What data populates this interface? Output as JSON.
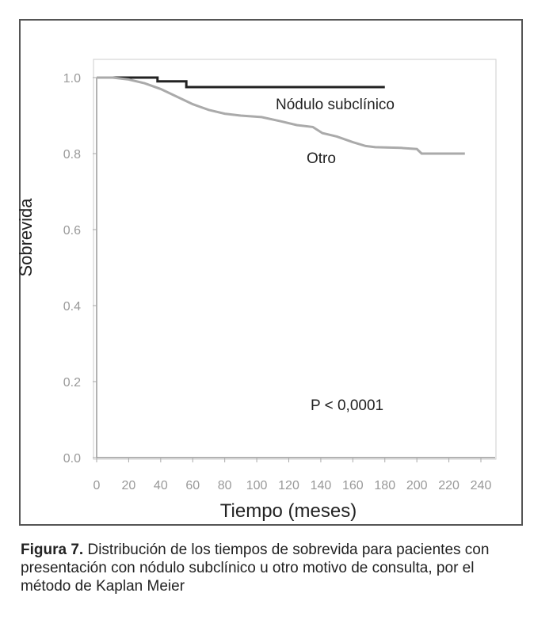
{
  "chart_data": {
    "type": "line",
    "title": "",
    "xlabel": "Tiempo (meses)",
    "ylabel": "Sobrevida",
    "xlim": [
      0,
      240
    ],
    "ylim": [
      0,
      1.0
    ],
    "xticks": [
      "0",
      "20",
      "40",
      "60",
      "80",
      "100",
      "120",
      "140",
      "160",
      "180",
      "200",
      "220",
      "240"
    ],
    "yticks": [
      "0.0",
      "0.2",
      "0.4",
      "0.6",
      "0.8",
      "1.0"
    ],
    "grid": false,
    "annotation": "P < 0,0001",
    "series": [
      {
        "name": "Nódulo subclínico",
        "color": "#222222",
        "step": true,
        "x": [
          0,
          38,
          56,
          180
        ],
        "y": [
          1.0,
          0.99,
          0.975,
          0.975
        ]
      },
      {
        "name": "Otro",
        "color": "#aaaaaa",
        "step": false,
        "x": [
          0,
          10,
          20,
          30,
          40,
          50,
          60,
          70,
          80,
          90,
          103,
          115,
          125,
          135,
          141,
          150,
          160,
          168,
          174,
          190,
          200,
          203,
          215,
          230
        ],
        "y": [
          1.0,
          1.0,
          0.995,
          0.985,
          0.97,
          0.95,
          0.93,
          0.915,
          0.905,
          0.9,
          0.896,
          0.885,
          0.875,
          0.87,
          0.854,
          0.845,
          0.83,
          0.82,
          0.817,
          0.815,
          0.812,
          0.8,
          0.8,
          0.8
        ]
      }
    ]
  },
  "caption": {
    "label": "Figura 7.",
    "text": " Distribución de los tiempos de sobrevida para pacientes con presentación con nódulo subclínico u otro motivo de consulta, por el método de Kaplan Meier"
  }
}
